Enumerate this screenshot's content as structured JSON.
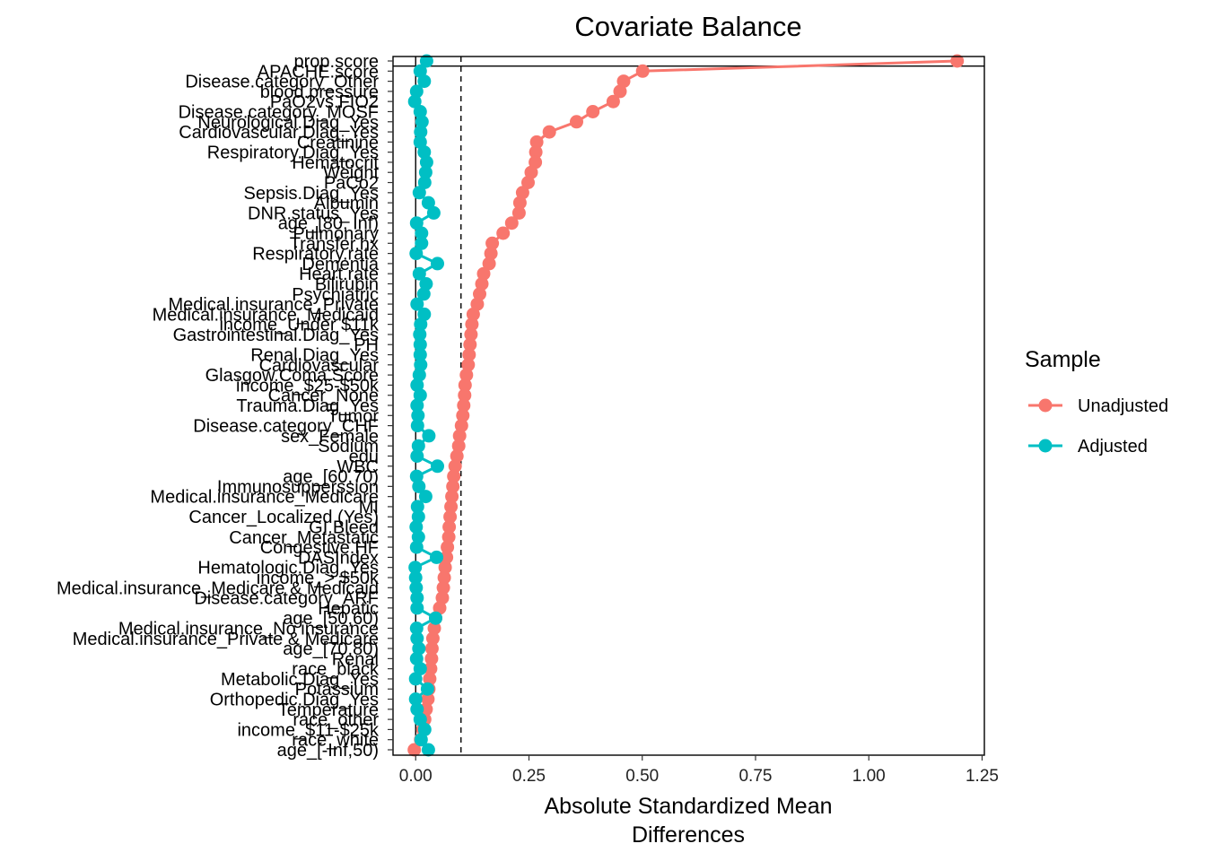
{
  "chart_data": {
    "type": "scatter",
    "title": "Covariate Balance",
    "xlabel": [
      "Absolute Standardized Mean",
      "Differences"
    ],
    "ylabel": "",
    "xlim": [
      -0.05,
      1.255
    ],
    "xticks": [
      0,
      0.25,
      0.5,
      0.75,
      1.0,
      1.25
    ],
    "xtick_labels": [
      "0.00",
      "0.25",
      "0.50",
      "0.75",
      "1.00",
      "1.25"
    ],
    "reference_lines": {
      "solid": 0,
      "dashed": 0.1,
      "separator_after": "prop.score"
    },
    "legend": {
      "title": "Sample",
      "position": "right"
    },
    "categories": [
      "prop.score",
      "APACHE.score",
      "Disease.category_Other",
      "blood.pressure",
      "PaO2vs.FIO2",
      "Disease.category_MOSF",
      "Neurological.Diag_Yes",
      "Cardiovascular.Diag_Yes",
      "Creatinine",
      "Respiratory.Diag_Yes",
      "Hematocrit",
      "Weight",
      "PaCo2",
      "Sepsis.Diag_Yes",
      "Albumin",
      "DNR.status_Yes",
      "age_[80, Inf)",
      "Pulmonary",
      "Transfer.hx",
      "Respiratory.rate",
      "Dementia",
      "Heart.rate",
      "Bilirubin",
      "Psychiatric",
      "Medical.insurance_Private",
      "Medical.insurance_Medicaid",
      "income_Under $11k",
      "Gastrointestinal.Diag_Yes",
      "PH",
      "Renal.Diag_Yes",
      "Cardiovascular",
      "Glasgow.Coma.Score",
      "income_$25-$50k",
      "Cancer_None",
      "Trauma.Diag_Yes",
      "Tumor",
      "Disease.category_CHF",
      "sex_Female",
      "Sodium",
      "edu",
      "WBC",
      "age_[60,70)",
      "Immunosupperssion",
      "Medical.insurance_Medicare",
      "MI",
      "Cancer_Localized (Yes)",
      "GI.Bleed",
      "Cancer_Metastatic",
      "Congestive.HF",
      "DASIndex",
      "Hematologic.Diag_Yes",
      "income_> $50k",
      "Medical.insurance_Medicare & Medicaid",
      "Disease.category_ARF",
      "Hepatic",
      "age_[50,60)",
      "Medical.insurance_No insurance",
      "Medical.insurance_Private & Medicare",
      "age_[70,80)",
      "Renal",
      "race_black",
      "Metabolic.Diag_Yes",
      "Potassium",
      "Orthopedic.Diag_Yes",
      "Temperature",
      "race_other",
      "income_$11-$25k",
      "race_white",
      "age_[-Inf,50)"
    ],
    "series": [
      {
        "name": "Unadjusted",
        "color": "#F8766D",
        "values": [
          1.195,
          0.501,
          0.459,
          0.451,
          0.436,
          0.391,
          0.355,
          0.295,
          0.267,
          0.265,
          0.264,
          0.255,
          0.248,
          0.236,
          0.23,
          0.228,
          0.212,
          0.193,
          0.169,
          0.166,
          0.162,
          0.15,
          0.146,
          0.141,
          0.136,
          0.127,
          0.124,
          0.122,
          0.12,
          0.118,
          0.116,
          0.112,
          0.109,
          0.108,
          0.106,
          0.104,
          0.101,
          0.097,
          0.095,
          0.091,
          0.087,
          0.084,
          0.082,
          0.08,
          0.078,
          0.076,
          0.074,
          0.073,
          0.07,
          0.068,
          0.065,
          0.063,
          0.061,
          0.059,
          0.053,
          0.044,
          0.041,
          0.038,
          0.036,
          0.035,
          0.033,
          0.031,
          0.029,
          0.027,
          0.023,
          0.02,
          0.016,
          0.011,
          -0.003
        ]
      },
      {
        "name": "Adjusted",
        "color": "#00BFC4",
        "values": [
          0.024,
          0.01,
          0.019,
          0.002,
          -0.002,
          0.01,
          0.014,
          0.011,
          0.01,
          0.019,
          0.024,
          0.022,
          0.02,
          0.008,
          0.028,
          0.04,
          0.002,
          0.013,
          0.013,
          0.001,
          0.048,
          0.008,
          0.023,
          0.018,
          0.003,
          0.019,
          0.011,
          0.009,
          0.01,
          0.01,
          0.011,
          0.008,
          0.003,
          0.01,
          0.003,
          0.005,
          0.004,
          0.029,
          0.006,
          0.003,
          0.048,
          0.002,
          0.007,
          0.022,
          0.004,
          0.006,
          0.001,
          0.006,
          0.002,
          0.046,
          -0.001,
          0.0,
          0.001,
          0.003,
          0.003,
          0.044,
          0.002,
          0.003,
          0.007,
          0.002,
          0.01,
          0.0,
          0.026,
          0.0,
          0.003,
          0.01,
          0.02,
          0.012,
          0.028
        ]
      }
    ]
  }
}
